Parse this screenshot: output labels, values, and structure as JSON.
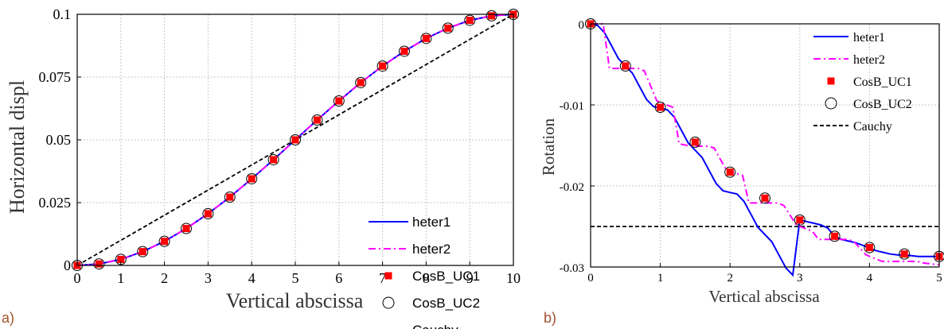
{
  "chart_data": [
    {
      "type": "line",
      "panel_label": "a)",
      "xlabel": "Vertical abscissa",
      "ylabel": "Horizontal displ",
      "xlim": [
        0,
        10
      ],
      "ylim": [
        0,
        0.1
      ],
      "xticks": [
        "0",
        "1",
        "2",
        "3",
        "4",
        "5",
        "6",
        "7",
        "8",
        "9",
        "10"
      ],
      "yticks": [
        "0",
        "0.025",
        "0.05",
        "0.075",
        "0.1"
      ],
      "grid": true,
      "legend_position": "bottom-right",
      "series": [
        {
          "name": "heter1",
          "style": "solid",
          "color": "#0000ff",
          "x": [
            0,
            0.5,
            1,
            1.5,
            2,
            2.5,
            3,
            3.5,
            4,
            4.5,
            5,
            5.5,
            6,
            6.5,
            7,
            7.5,
            8,
            8.5,
            9,
            9.5,
            10
          ],
          "y": [
            0,
            0.0006,
            0.0024,
            0.0055,
            0.0096,
            0.0147,
            0.0206,
            0.0272,
            0.0345,
            0.0421,
            0.05,
            0.0579,
            0.0655,
            0.0728,
            0.0794,
            0.0853,
            0.0904,
            0.0945,
            0.0976,
            0.0994,
            0.1
          ]
        },
        {
          "name": "heter2",
          "style": "dashdot",
          "color": "#ff00ff",
          "x": [
            0,
            0.5,
            1,
            1.5,
            2,
            2.5,
            3,
            3.5,
            4,
            4.5,
            5,
            5.5,
            6,
            6.5,
            7,
            7.5,
            8,
            8.5,
            9,
            9.5,
            10
          ],
          "y": [
            0,
            0.0006,
            0.0024,
            0.0055,
            0.0096,
            0.0147,
            0.0206,
            0.0272,
            0.0345,
            0.0421,
            0.05,
            0.0579,
            0.0655,
            0.0728,
            0.0794,
            0.0853,
            0.0904,
            0.0945,
            0.0976,
            0.0994,
            0.1
          ]
        },
        {
          "name": "CosB_UC1",
          "style": "square-marker",
          "color": "#ff0000",
          "x": [
            0,
            0.5,
            1,
            1.5,
            2,
            2.5,
            3,
            3.5,
            4,
            4.5,
            5,
            5.5,
            6,
            6.5,
            7,
            7.5,
            8,
            8.5,
            9,
            9.5,
            10
          ],
          "y": [
            0,
            0.0006,
            0.0024,
            0.0055,
            0.0096,
            0.0147,
            0.0206,
            0.0272,
            0.0345,
            0.0421,
            0.05,
            0.0579,
            0.0655,
            0.0728,
            0.0794,
            0.0853,
            0.0904,
            0.0945,
            0.0976,
            0.0994,
            0.1
          ]
        },
        {
          "name": "CosB_UC2",
          "style": "circle-marker",
          "color": "#000000",
          "x": [
            0,
            0.5,
            1,
            1.5,
            2,
            2.5,
            3,
            3.5,
            4,
            4.5,
            5,
            5.5,
            6,
            6.5,
            7,
            7.5,
            8,
            8.5,
            9,
            9.5,
            10
          ],
          "y": [
            0,
            0.0006,
            0.0024,
            0.0055,
            0.0096,
            0.0147,
            0.0206,
            0.0272,
            0.0345,
            0.0421,
            0.05,
            0.0579,
            0.0655,
            0.0728,
            0.0794,
            0.0853,
            0.0904,
            0.0945,
            0.0976,
            0.0994,
            0.1
          ]
        },
        {
          "name": "Cauchy",
          "style": "dashed",
          "color": "#000000",
          "x": [
            0,
            10
          ],
          "y": [
            0,
            0.1
          ]
        }
      ]
    },
    {
      "type": "line",
      "panel_label": "b)",
      "xlabel": "Vertical abscissa",
      "ylabel": "Rotation",
      "xlim": [
        0,
        5
      ],
      "ylim": [
        -0.03,
        0
      ],
      "xticks": [
        "0",
        "1",
        "2",
        "3",
        "4",
        "5"
      ],
      "yticks": [
        "0",
        "-0.01",
        "-0.02",
        "-0.03"
      ],
      "grid": true,
      "legend_position": "top-right",
      "series": [
        {
          "name": "heter1",
          "style": "solid",
          "color": "#0000ff",
          "x": [
            0,
            0.1,
            0.2,
            0.3,
            0.4,
            0.5,
            0.6,
            0.7,
            0.8,
            0.9,
            1.0,
            1.1,
            1.2,
            1.3,
            1.4,
            1.5,
            1.6,
            1.7,
            1.8,
            1.9,
            2.0,
            2.1,
            2.2,
            2.3,
            2.4,
            2.5,
            2.6,
            2.7,
            2.8,
            2.9,
            3.0,
            3.1,
            3.2,
            3.3,
            3.4,
            3.5,
            3.6,
            3.7,
            3.8,
            3.9,
            4.0,
            4.1,
            4.2,
            4.3,
            4.4,
            4.5,
            4.6,
            4.7,
            4.8,
            4.9,
            5.0
          ],
          "y": [
            0,
            -0.0002,
            -0.0011,
            -0.0027,
            -0.0043,
            -0.0052,
            -0.0061,
            -0.0077,
            -0.0093,
            -0.0102,
            -0.0104,
            -0.0106,
            -0.0115,
            -0.0131,
            -0.0147,
            -0.0156,
            -0.0165,
            -0.0181,
            -0.0197,
            -0.0206,
            -0.0208,
            -0.021,
            -0.0219,
            -0.0235,
            -0.0251,
            -0.026,
            -0.0269,
            -0.0285,
            -0.0301,
            -0.031,
            -0.0242,
            -0.0244,
            -0.0246,
            -0.0248,
            -0.0252,
            -0.0262,
            -0.0266,
            -0.0268,
            -0.027,
            -0.0273,
            -0.0277,
            -0.028,
            -0.0282,
            -0.0284,
            -0.0285,
            -0.0285,
            -0.0286,
            -0.0287,
            -0.0287,
            -0.0287,
            -0.0287
          ]
        },
        {
          "name": "heter2",
          "style": "dashdot",
          "color": "#ff00ff",
          "x": [
            0,
            0.18,
            0.27,
            0.45,
            0.68,
            0.77,
            0.95,
            1.18,
            1.27,
            1.45,
            1.68,
            1.77,
            1.95,
            2.18,
            2.27,
            2.45,
            2.68,
            2.77,
            2.95,
            3.18,
            3.27,
            3.45,
            3.68,
            3.77,
            3.95,
            4.18,
            4.27,
            4.45,
            4.68,
            4.77,
            4.95,
            5.0
          ],
          "y": [
            0,
            0,
            -0.0055,
            -0.0055,
            -0.0055,
            -0.0058,
            -0.0095,
            -0.0103,
            -0.0148,
            -0.0151,
            -0.0151,
            -0.0153,
            -0.0181,
            -0.0187,
            -0.0221,
            -0.0221,
            -0.0221,
            -0.0224,
            -0.0248,
            -0.0256,
            -0.0266,
            -0.0266,
            -0.0266,
            -0.0268,
            -0.0285,
            -0.0293,
            -0.0293,
            -0.0293,
            -0.0293,
            -0.0295,
            -0.0297,
            -0.0297
          ]
        },
        {
          "name": "CosB_UC1",
          "style": "square-marker",
          "color": "#ff0000",
          "x": [
            0,
            0.5,
            1,
            1.5,
            2,
            2.5,
            3,
            3.5,
            4,
            4.5,
            5
          ],
          "y": [
            0,
            -0.0052,
            -0.0103,
            -0.0146,
            -0.0183,
            -0.0215,
            -0.0242,
            -0.0262,
            -0.0276,
            -0.0284,
            -0.0287
          ]
        },
        {
          "name": "CosB_UC2",
          "style": "circle-marker",
          "color": "#000000",
          "x": [
            0,
            0.5,
            1,
            1.5,
            2,
            2.5,
            3,
            3.5,
            4,
            4.5,
            5
          ],
          "y": [
            0,
            -0.0052,
            -0.0103,
            -0.0146,
            -0.0183,
            -0.0215,
            -0.0242,
            -0.0262,
            -0.0276,
            -0.0284,
            -0.0287
          ]
        },
        {
          "name": "Cauchy",
          "style": "dashed",
          "color": "#000000",
          "x": [
            0,
            5
          ],
          "y": [
            -0.025,
            -0.025
          ]
        }
      ]
    }
  ]
}
